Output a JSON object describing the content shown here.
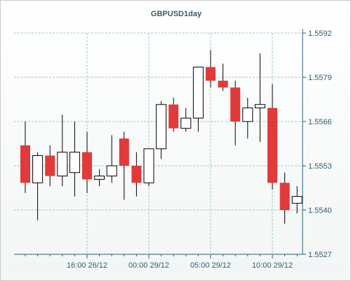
{
  "chart_data": {
    "type": "candlestick",
    "title": "GBPUSD1day",
    "xlabel": "",
    "ylabel": "",
    "ylim": [
      1.5527,
      1.5592
    ],
    "y_ticks": [
      "1.5527",
      "1.5540",
      "1.5553",
      "1.5566",
      "1.5579",
      "1.5592"
    ],
    "x_ticks": [
      {
        "label": "16:00 26/12",
        "index": 5
      },
      {
        "label": "00:00 29/12",
        "index": 10
      },
      {
        "label": "05:00 29/12",
        "index": 15
      },
      {
        "label": "10:00 29/12",
        "index": 20
      }
    ],
    "grid": true,
    "colors": {
      "bearish": "#e23a3a",
      "bullish": "#ffffff",
      "outline": "#000000",
      "grid": "#9cc8cc",
      "axis": "#2b5f6e"
    },
    "candles": [
      {
        "open": 1.5559,
        "high": 1.5566,
        "low": 1.5545,
        "close": 1.5548
      },
      {
        "open": 1.5548,
        "high": 1.5557,
        "low": 1.5537,
        "close": 1.5556
      },
      {
        "open": 1.5556,
        "high": 1.5559,
        "low": 1.5547,
        "close": 1.555
      },
      {
        "open": 1.555,
        "high": 1.5568,
        "low": 1.5547,
        "close": 1.5557
      },
      {
        "open": 1.5551,
        "high": 1.5566,
        "low": 1.5544,
        "close": 1.5557
      },
      {
        "open": 1.5557,
        "high": 1.5563,
        "low": 1.5545,
        "close": 1.5549
      },
      {
        "open": 1.5549,
        "high": 1.5552,
        "low": 1.5547,
        "close": 1.555
      },
      {
        "open": 1.555,
        "high": 1.5562,
        "low": 1.5548,
        "close": 1.5553
      },
      {
        "open": 1.5561,
        "high": 1.5563,
        "low": 1.5543,
        "close": 1.5553
      },
      {
        "open": 1.5553,
        "high": 1.5557,
        "low": 1.5544,
        "close": 1.5548
      },
      {
        "open": 1.5548,
        "high": 1.5558,
        "low": 1.5547,
        "close": 1.5558
      },
      {
        "open": 1.5558,
        "high": 1.5572,
        "low": 1.5555,
        "close": 1.5571
      },
      {
        "open": 1.5571,
        "high": 1.5573,
        "low": 1.5563,
        "close": 1.5564
      },
      {
        "open": 1.5564,
        "high": 1.557,
        "low": 1.5563,
        "close": 1.5567
      },
      {
        "open": 1.5567,
        "high": 1.5582,
        "low": 1.5563,
        "close": 1.5582
      },
      {
        "open": 1.5582,
        "high": 1.5587,
        "low": 1.5576,
        "close": 1.5578
      },
      {
        "open": 1.5578,
        "high": 1.5583,
        "low": 1.5575,
        "close": 1.5576
      },
      {
        "open": 1.5576,
        "high": 1.5578,
        "low": 1.5559,
        "close": 1.5566
      },
      {
        "open": 1.5566,
        "high": 1.5573,
        "low": 1.5561,
        "close": 1.557
      },
      {
        "open": 1.557,
        "high": 1.5586,
        "low": 1.556,
        "close": 1.5571
      },
      {
        "open": 1.557,
        "high": 1.5577,
        "low": 1.5546,
        "close": 1.5548
      },
      {
        "open": 1.5548,
        "high": 1.5551,
        "low": 1.5536,
        "close": 1.554
      },
      {
        "open": 1.5542,
        "high": 1.5547,
        "low": 1.5539,
        "close": 1.5544
      }
    ]
  }
}
